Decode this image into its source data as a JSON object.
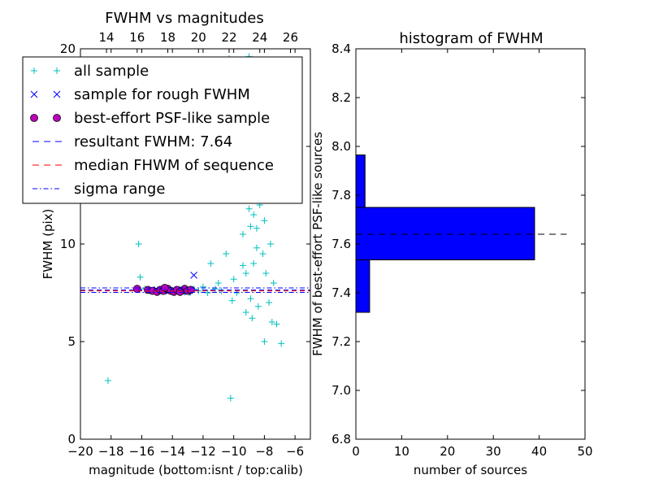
{
  "chart_data": [
    {
      "type": "scatter",
      "title": "FWHM vs magnitudes",
      "xlabel": "magnitude (bottom:isnt / top:calib)",
      "ylabel": "FWHM (pix)",
      "xlim": [
        -20,
        -5
      ],
      "ylim": [
        0,
        20
      ],
      "xticks": [
        -20,
        -18,
        -16,
        -14,
        -12,
        -10,
        -8,
        -6
      ],
      "xtick_labels": [
        "−20",
        "−18",
        "−16",
        "−14",
        "−12",
        "−10",
        "−8",
        "−6"
      ],
      "yticks": [
        0,
        5,
        10,
        15,
        20
      ],
      "ytick_labels": [
        "0",
        "5",
        "10",
        "15",
        "20"
      ],
      "top_axis": {
        "ticks_at_bottom_value": [
          -18.3,
          -16.3,
          -14.3,
          -12.3,
          -10.3,
          -8.3,
          -6.3
        ],
        "labels": [
          "14",
          "16",
          "18",
          "20",
          "22",
          "24",
          "26"
        ]
      },
      "legend": {
        "placement": "upper-left",
        "entries": [
          {
            "key": "all",
            "label": "all sample",
            "marker": "+",
            "color": "#00bfbf"
          },
          {
            "key": "rough",
            "label": "sample for rough FWHM",
            "marker": "x",
            "color": "#0000ff"
          },
          {
            "key": "best",
            "label": "best-effort PSF-like sample",
            "marker": "o",
            "color": "#bf00bf"
          },
          {
            "key": "result",
            "label": "resultant FWHM: 7.64",
            "line": "dashed",
            "color": "#0000ff"
          },
          {
            "key": "median",
            "label": "median FHWM of sequence",
            "line": "dashed",
            "color": "#ff0000"
          },
          {
            "key": "sigma",
            "label": "sigma range",
            "line": "dashdot",
            "color": "#0000ff"
          }
        ]
      },
      "hlines": [
        {
          "y": 7.64,
          "color": "#0000ff",
          "style": "dashed"
        },
        {
          "y": 7.6,
          "color": "#ff0000",
          "style": "dashed"
        },
        {
          "y": 7.75,
          "color": "#0000ff",
          "style": "dashdot"
        },
        {
          "y": 7.52,
          "color": "#0000ff",
          "style": "dashdot"
        }
      ],
      "series": [
        {
          "name": "all sample",
          "marker": "+",
          "color": "#00bfbf",
          "points": [
            [
              -18.2,
              3.0
            ],
            [
              -16.2,
              10.0
            ],
            [
              -16.1,
              8.3
            ],
            [
              -15.8,
              7.7
            ],
            [
              -15.5,
              7.6
            ],
            [
              -15.2,
              7.65
            ],
            [
              -15.0,
              7.55
            ],
            [
              -14.7,
              7.6
            ],
            [
              -14.4,
              7.7
            ],
            [
              -14.1,
              7.6
            ],
            [
              -13.8,
              7.55
            ],
            [
              -13.5,
              7.7
            ],
            [
              -13.2,
              7.6
            ],
            [
              -12.9,
              7.5
            ],
            [
              -12.6,
              7.7
            ],
            [
              -12.3,
              7.6
            ],
            [
              -12.0,
              7.8
            ],
            [
              -11.7,
              7.5
            ],
            [
              -11.5,
              9.0
            ],
            [
              -11.2,
              7.7
            ],
            [
              -11.0,
              8.0
            ],
            [
              -10.8,
              7.6
            ],
            [
              -10.5,
              9.5
            ],
            [
              -10.2,
              2.1
            ],
            [
              -10.0,
              8.2
            ],
            [
              -9.8,
              7.5
            ],
            [
              -9.6,
              12.5
            ],
            [
              -9.4,
              10.5
            ],
            [
              -9.2,
              8.5
            ],
            [
              -9.0,
              11.8
            ],
            [
              -8.9,
              7.2
            ],
            [
              -8.8,
              13.2
            ],
            [
              -8.7,
              9.0
            ],
            [
              -8.6,
              14.0
            ],
            [
              -8.5,
              10.8
            ],
            [
              -8.4,
              6.8
            ],
            [
              -8.3,
              12.0
            ],
            [
              -8.2,
              15.5
            ],
            [
              -8.1,
              9.5
            ],
            [
              -8.0,
              11.2
            ],
            [
              -7.9,
              8.5
            ],
            [
              -7.8,
              13.0
            ],
            [
              -7.7,
              7.0
            ],
            [
              -7.6,
              10.0
            ],
            [
              -7.5,
              6.0
            ],
            [
              -7.4,
              8.0
            ],
            [
              -7.2,
              5.9
            ],
            [
              -6.9,
              4.9
            ],
            [
              -9.5,
              18.0
            ],
            [
              -9.0,
              19.6
            ],
            [
              -10.3,
              19.5
            ],
            [
              -8.0,
              19.0
            ],
            [
              -9.3,
              16.5
            ],
            [
              -8.6,
              17.2
            ],
            [
              -8.3,
              16.0
            ],
            [
              -9.8,
              15.0
            ],
            [
              -8.0,
              5.0
            ],
            [
              -9.2,
              6.5
            ],
            [
              -8.8,
              6.2
            ],
            [
              -10.1,
              7.1
            ],
            [
              -9.4,
              8.9
            ],
            [
              -8.5,
              9.8
            ],
            [
              -8.9,
              10.9
            ],
            [
              -8.2,
              12.5
            ],
            [
              -8.7,
              11.5
            ],
            [
              -9.1,
              13.8
            ]
          ]
        },
        {
          "name": "sample for rough FWHM",
          "marker": "x",
          "color": "#0000ff",
          "points": [
            [
              -12.6,
              8.4
            ],
            [
              -13.0,
              7.55
            ],
            [
              -14.2,
              7.6
            ],
            [
              -15.0,
              7.65
            ]
          ]
        },
        {
          "name": "best-effort PSF-like sample",
          "marker": "o",
          "color": "#bf00bf",
          "points": [
            [
              -16.3,
              7.7
            ],
            [
              -15.6,
              7.65
            ],
            [
              -15.3,
              7.6
            ],
            [
              -15.0,
              7.55
            ],
            [
              -14.8,
              7.65
            ],
            [
              -14.6,
              7.6
            ],
            [
              -14.3,
              7.7
            ],
            [
              -14.1,
              7.6
            ],
            [
              -13.9,
              7.55
            ],
            [
              -13.7,
              7.65
            ],
            [
              -13.4,
              7.6
            ],
            [
              -13.2,
              7.7
            ],
            [
              -13.0,
              7.6
            ],
            [
              -12.8,
              7.65
            ],
            [
              -14.5,
              7.75
            ],
            [
              -13.5,
              7.55
            ]
          ]
        }
      ]
    },
    {
      "type": "bar",
      "orientation": "horizontal",
      "title": "histogram of FWHM",
      "xlabel": "number of sources",
      "ylabel": "FWHM of best-effort PSF-like sources",
      "xlim": [
        0,
        50
      ],
      "ylim": [
        6.8,
        8.4
      ],
      "xticks": [
        0,
        10,
        20,
        30,
        40,
        50
      ],
      "xtick_labels": [
        "0",
        "10",
        "20",
        "30",
        "40",
        "50"
      ],
      "yticks": [
        6.8,
        7.0,
        7.2,
        7.4,
        7.6,
        7.8,
        8.0,
        8.2,
        8.4
      ],
      "ytick_labels": [
        "6.8",
        "7.0",
        "7.2",
        "7.4",
        "7.6",
        "7.8",
        "8.0",
        "8.2",
        "8.4"
      ],
      "color": "#0000ff",
      "bins": [
        {
          "low": 7.32,
          "high": 7.535,
          "count": 3
        },
        {
          "low": 7.535,
          "high": 7.75,
          "count": 39
        },
        {
          "low": 7.75,
          "high": 7.965,
          "count": 2
        }
      ],
      "hline": {
        "y": 7.64,
        "style": "dashed",
        "color": "#000000",
        "xrange": [
          0,
          46
        ]
      }
    }
  ]
}
